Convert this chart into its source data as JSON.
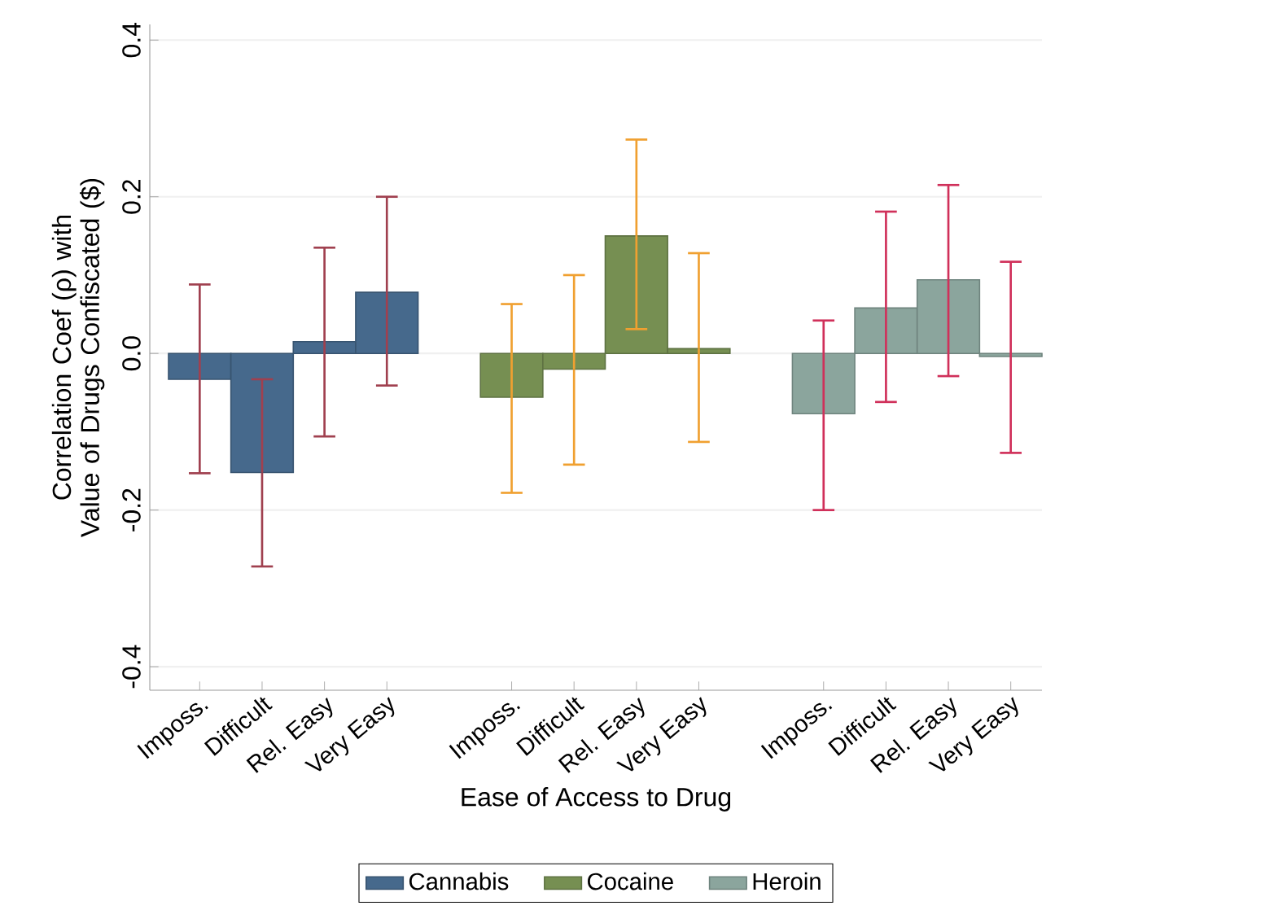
{
  "chart_data": {
    "type": "bar",
    "xlabel": "Ease of Access to Drug",
    "ylabel": "Correlation Coef (ρ) with Value of Drugs Confiscated ($)",
    "categories": [
      "Imposs.",
      "Difficult",
      "Rel. Easy",
      "Very Easy",
      null,
      "Imposs.",
      "Difficult",
      "Rel. Easy",
      "Very Easy",
      null,
      "Imposs.",
      "Difficult",
      "Rel. Easy",
      "Very Easy"
    ],
    "ylim": [
      -0.43,
      0.42
    ],
    "yticks": [
      {
        "value": -0.4,
        "label": "-0.4"
      },
      {
        "value": -0.2,
        "label": "-0.2"
      },
      {
        "value": 0,
        "label": "0.0"
      },
      {
        "value": 0.2,
        "label": "0.2"
      },
      {
        "value": 0.4,
        "label": "0.4"
      }
    ],
    "grid": "y",
    "legend": "bottom",
    "series": [
      {
        "name": "Cannabis",
        "color": "#46698c",
        "values": [
          -0.033,
          -0.152,
          0.015,
          0.078,
          null,
          null,
          null,
          null,
          null,
          null,
          null,
          null,
          null,
          null
        ],
        "errors": [
          [
            -0.153,
            0.088
          ],
          [
            -0.272,
            -0.033
          ],
          [
            -0.106,
            0.135
          ],
          [
            -0.041,
            0.2
          ],
          null,
          null,
          null,
          null,
          null,
          null,
          null,
          null,
          null,
          null
        ]
      },
      {
        "name": "Cocaine",
        "color": "#768f52",
        "values": [
          null,
          null,
          null,
          null,
          null,
          -0.056,
          -0.02,
          0.15,
          0.006,
          null,
          null,
          null,
          null,
          null
        ],
        "errors": [
          null,
          null,
          null,
          null,
          null,
          [
            -0.178,
            0.063
          ],
          [
            -0.142,
            0.1
          ],
          [
            0.031,
            0.273
          ],
          [
            -0.113,
            0.128
          ],
          null,
          null,
          null,
          null,
          null
        ]
      },
      {
        "name": "Heroin",
        "color": "#8ba59d",
        "values": [
          null,
          null,
          null,
          null,
          null,
          null,
          null,
          null,
          null,
          null,
          -0.077,
          0.058,
          0.094,
          -0.004
        ],
        "errors": [
          null,
          null,
          null,
          null,
          null,
          null,
          null,
          null,
          null,
          null,
          [
            -0.2,
            0.042
          ],
          [
            -0.062,
            0.181
          ],
          [
            -0.029,
            0.215
          ],
          [
            -0.127,
            0.117
          ]
        ]
      }
    ]
  }
}
